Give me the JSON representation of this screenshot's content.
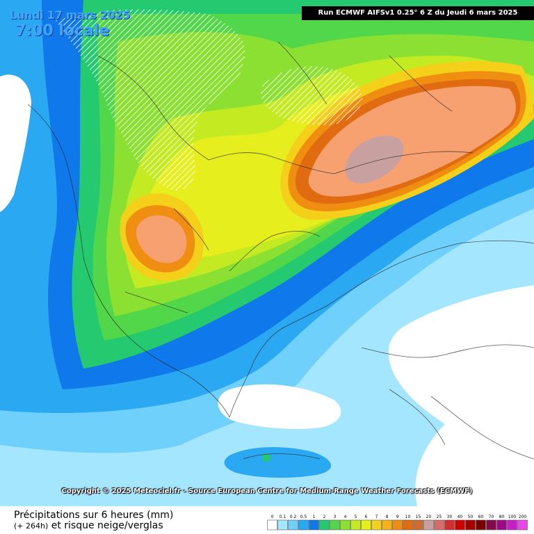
{
  "header": {
    "date": "Lundi 17 mars 2025",
    "time": "7:00 locale",
    "run": "Run ECMWF AIFSv1 0.25° 6 Z du Jeudi 6 mars 2025"
  },
  "copyright": "Copyright © 2025 Meteociel.fr - Source European Centre for Medium-Range Weather Forecasts (ECMWF)",
  "legend": {
    "title": "Précipitations sur 6 heures (mm)",
    "lead": "(+ 264h)",
    "subtitle": "et risque neige/verglas",
    "scale": [
      {
        "label": "0",
        "color": "#ffffff"
      },
      {
        "label": "0.1",
        "color": "#a5e6ff"
      },
      {
        "label": "0.2",
        "color": "#6fd0fb"
      },
      {
        "label": "0.5",
        "color": "#2ba8f2"
      },
      {
        "label": "1",
        "color": "#0f78ea"
      },
      {
        "label": "2",
        "color": "#25c96f"
      },
      {
        "label": "3",
        "color": "#52d64a"
      },
      {
        "label": "4",
        "color": "#8ce031"
      },
      {
        "label": "5",
        "color": "#c4ea22"
      },
      {
        "label": "6",
        "color": "#e6ee1d"
      },
      {
        "label": "7",
        "color": "#f5d01a"
      },
      {
        "label": "8",
        "color": "#f5b11a"
      },
      {
        "label": "9",
        "color": "#f08e12"
      },
      {
        "label": "10",
        "color": "#e06b10"
      },
      {
        "label": "15",
        "color": "#cf6b2e"
      },
      {
        "label": "20",
        "color": "#c9a0a0"
      },
      {
        "label": "25",
        "color": "#d86a6a"
      },
      {
        "label": "30",
        "color": "#d12f2f"
      },
      {
        "label": "40",
        "color": "#d10000"
      },
      {
        "label": "50",
        "color": "#a30000"
      },
      {
        "label": "60",
        "color": "#7a0000"
      },
      {
        "label": "70",
        "color": "#850a4a"
      },
      {
        "label": "80",
        "color": "#a00a88"
      },
      {
        "label": "100",
        "color": "#c81ec8"
      },
      {
        "label": "200",
        "color": "#ee44ee"
      }
    ]
  }
}
